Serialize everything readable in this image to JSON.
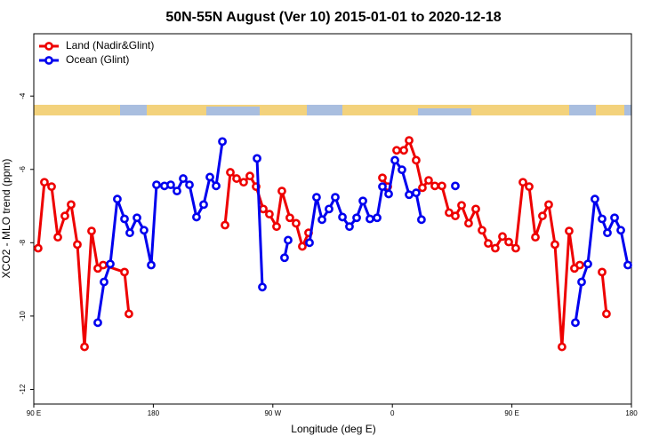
{
  "chart_data": {
    "type": "line",
    "title": "50N-55N August (Ver 10)   2015-01-01 to 2020-12-18",
    "x_label": "Longitude (deg E)",
    "y_label": "XCO2 - MLO trend (ppm)",
    "xlim": [
      90,
      540
    ],
    "ylim": [
      -12.4,
      -2.3
    ],
    "xticks": [
      {
        "value": 90,
        "label": "90 E"
      },
      {
        "value": 180,
        "label": "180"
      },
      {
        "value": 270,
        "label": "90 W"
      },
      {
        "value": 360,
        "label": "0"
      },
      {
        "value": 450,
        "label": "90 E"
      },
      {
        "value": 540,
        "label": "180"
      }
    ],
    "yticks": [
      -4,
      -6,
      -8,
      -10,
      -12
    ],
    "legend": "top-left",
    "series": [
      {
        "name": "Land (Nadir&Glint)",
        "color": "#ee0000",
        "x": [
          93.3,
          98.0,
          103.4,
          108.1,
          113.4,
          118.1,
          122.8,
          128.2,
          133.5,
          138.2,
          142.2,
          158.3,
          161.6,
          null,
          234.0,
          238.0,
          242.7,
          248.0,
          252.7,
          257.4,
          262.8,
          267.4,
          272.8,
          276.8,
          282.8,
          287.5,
          292.2,
          296.9,
          null,
          352.5,
          356.5,
          null,
          363.2,
          368.6,
          372.6,
          377.9,
          382.6,
          387.3,
          392.0,
          397.3,
          402.7,
          407.4,
          412.1,
          417.4,
          422.8,
          427.5,
          432.2,
          437.5,
          442.9,
          447.6,
          452.9,
          458.3,
          463.0,
          467.7,
          473.0,
          477.7,
          482.4,
          487.7,
          493.1,
          497.1,
          501.1,
          null,
          517.9,
          521.2
        ],
        "values": [
          -8.15,
          -6.35,
          -6.47,
          -7.85,
          -7.27,
          -6.96,
          -8.05,
          -10.84,
          -7.68,
          -8.7,
          -8.61,
          -8.8,
          -9.94,
          null,
          -7.52,
          -6.08,
          -6.25,
          -6.35,
          -6.18,
          -6.47,
          -7.08,
          -7.22,
          -7.56,
          -6.59,
          -7.32,
          -7.47,
          -8.1,
          -7.73,
          null,
          -6.23,
          -6.47,
          null,
          -5.48,
          -5.48,
          -5.21,
          -5.75,
          -6.5,
          -6.3,
          -6.45,
          -6.45,
          -7.18,
          -7.27,
          -6.98,
          -7.47,
          -7.08,
          -7.66,
          -8.02,
          -8.15,
          -7.83,
          -7.98,
          -8.15,
          -6.35,
          -6.47,
          -7.85,
          -7.27,
          -6.96,
          -8.05,
          -10.84,
          -7.68,
          -8.7,
          -8.61,
          null,
          -8.8,
          -9.94
        ]
      },
      {
        "name": "Ocean (Glint)",
        "color": "#0000ee",
        "x": [
          138.2,
          142.9,
          147.6,
          152.9,
          158.3,
          162.3,
          167.7,
          173.0,
          178.4,
          182.4,
          188.4,
          193.1,
          197.8,
          202.5,
          207.2,
          212.5,
          217.9,
          222.6,
          227.3,
          232.0,
          null,
          258.1,
          262.1,
          null,
          278.8,
          281.5,
          null,
          297.6,
          302.9,
          307.0,
          312.3,
          317.0,
          322.4,
          327.7,
          333.1,
          337.8,
          343.1,
          348.5,
          352.5,
          357.2,
          361.9,
          367.2,
          372.6,
          377.9,
          381.9,
          null,
          407.4,
          null,
          497.8,
          502.5,
          507.2,
          512.5,
          517.9,
          521.9,
          527.3,
          532.0,
          537.3
        ],
        "values": [
          -10.18,
          -9.07,
          -8.58,
          -6.81,
          -7.35,
          -7.73,
          -7.32,
          -7.66,
          -8.61,
          -6.42,
          -6.45,
          -6.42,
          -6.59,
          -6.25,
          -6.42,
          -7.3,
          -6.96,
          -6.21,
          -6.45,
          -5.24,
          null,
          -5.7,
          -9.21,
          null,
          -8.41,
          -7.93,
          null,
          -8.0,
          -6.76,
          -7.37,
          -7.08,
          -6.76,
          -7.3,
          -7.56,
          -7.32,
          -6.86,
          -7.35,
          -7.32,
          -6.47,
          -6.67,
          -5.75,
          -6.01,
          -6.69,
          -6.64,
          -7.37,
          null,
          -6.45,
          null,
          -10.18,
          -9.07,
          -8.58,
          -6.81,
          -7.35,
          -7.73,
          -7.32,
          -7.66,
          -8.61
        ]
      }
    ]
  }
}
